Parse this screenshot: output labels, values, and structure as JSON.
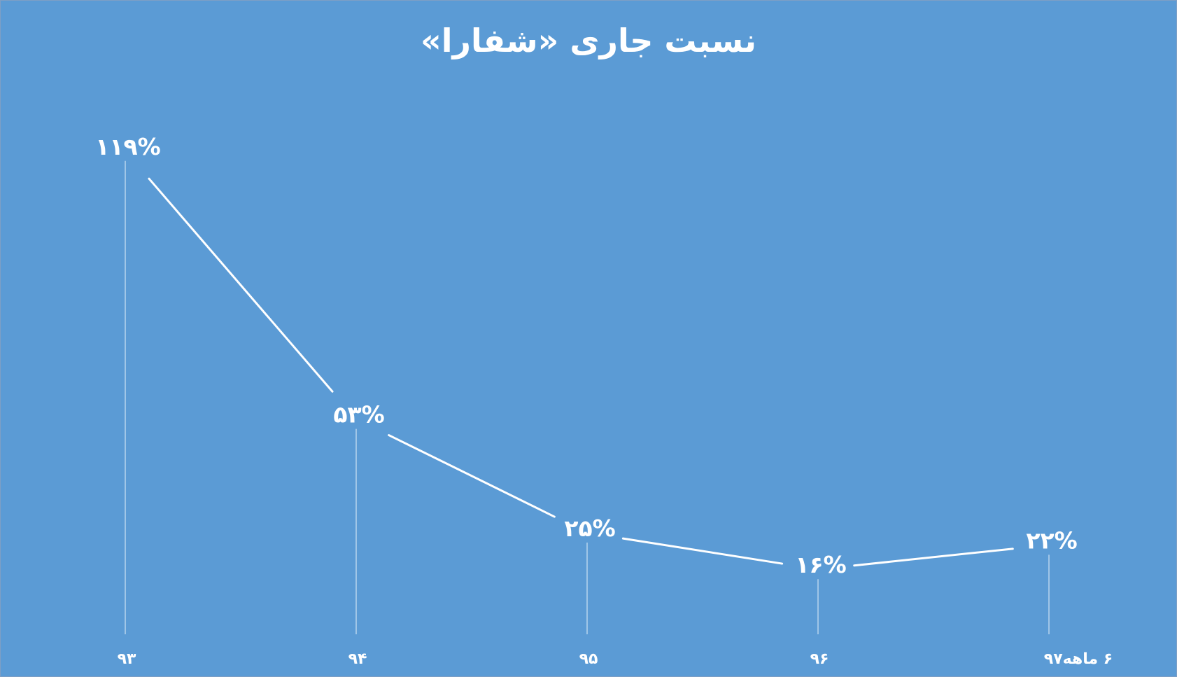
{
  "chart_data": {
    "type": "line",
    "title": "نسبت جاری «شفارا»",
    "categories": [
      "۹۳",
      "۹۴",
      "۹۵",
      "۹۶",
      "۶ ماهه۹۷"
    ],
    "values": [
      119,
      53,
      25,
      16,
      22
    ],
    "data_labels": [
      "۱۱۹%",
      "۵۳%",
      "۲۵%",
      "۱۶%",
      "۲۲%"
    ],
    "unit": "%",
    "ylim": [
      0,
      130
    ],
    "grid": false,
    "legend": "none",
    "drop_lines": true,
    "colors": {
      "background": "#5b9bd5",
      "line": "#ffffff",
      "text": "#ffffff"
    }
  }
}
